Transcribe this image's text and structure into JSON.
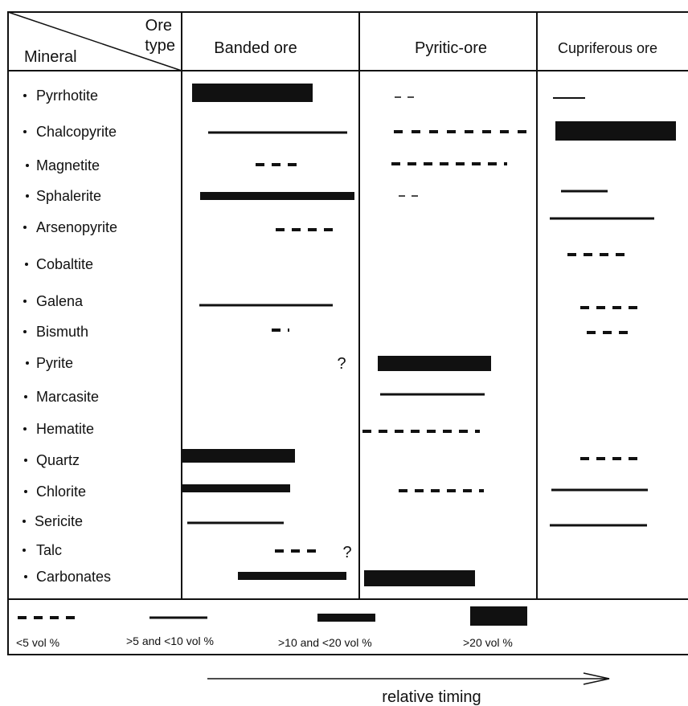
{
  "header": {
    "corner_top_line1": "Ore",
    "corner_top_line2": "type",
    "corner_bottom": "Mineral",
    "columns": [
      "Banded ore",
      "Pyritic-ore",
      "Cupriferous ore"
    ]
  },
  "minerals": [
    {
      "name": "Pyrrhotite"
    },
    {
      "name": "Chalcopyrite"
    },
    {
      "name": "Magnetite"
    },
    {
      "name": "Sphalerite"
    },
    {
      "name": "Arsenopyrite"
    },
    {
      "name": "Cobaltite"
    },
    {
      "name": "Galena"
    },
    {
      "name": "Bismuth"
    },
    {
      "name": "Pyrite"
    },
    {
      "name": "Marcasite"
    },
    {
      "name": "Hematite"
    },
    {
      "name": "Quartz"
    },
    {
      "name": "Chlorite"
    },
    {
      "name": "Sericite"
    },
    {
      "name": "Talc"
    },
    {
      "name": "Carbonates"
    }
  ],
  "question_mark": "?",
  "legend": {
    "items": [
      {
        "key": "dash",
        "label": "<5 vol %"
      },
      {
        "key": "thin",
        "label": ">5 and <10 vol %"
      },
      {
        "key": "medium",
        "label": ">10 and <20 vol %"
      },
      {
        "key": "thick",
        "label": ">20 vol %"
      }
    ]
  },
  "timing_label": "relative timing"
}
